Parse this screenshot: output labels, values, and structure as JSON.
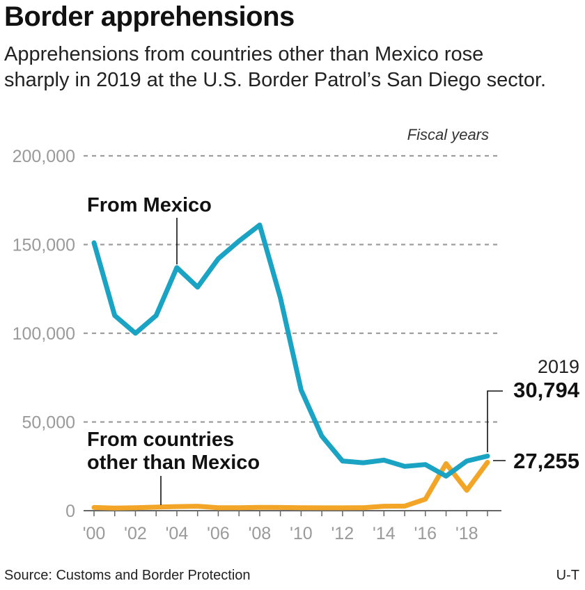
{
  "title": "Border apprehensions",
  "subtitle": "Apprehensions from countries other than Mexico rose sharply in 2019 at the U.S. Border Patrol’s San Diego sector.",
  "source": "Source: Customs and Border Protection",
  "credit": "U-T",
  "chart_data": {
    "type": "line",
    "note": "Fiscal years",
    "x": [
      2000,
      2001,
      2002,
      2003,
      2004,
      2005,
      2006,
      2007,
      2008,
      2009,
      2010,
      2011,
      2012,
      2013,
      2014,
      2015,
      2016,
      2017,
      2018,
      2019
    ],
    "x_tick_values": [
      2000,
      2002,
      2004,
      2006,
      2008,
      2010,
      2012,
      2014,
      2016,
      2018
    ],
    "x_tick_labels": [
      "'00",
      "'02",
      "'04",
      "'06",
      "'08",
      "'10",
      "'12",
      "'14",
      "'16",
      "'18"
    ],
    "y_tick_values": [
      0,
      50000,
      100000,
      150000,
      200000
    ],
    "y_tick_labels": [
      "0",
      "50,000",
      "100,000",
      "150,000",
      "200,000"
    ],
    "ylim": [
      0,
      200000
    ],
    "xlim": [
      2000,
      2019
    ],
    "grid": true,
    "series": [
      {
        "name": "From Mexico",
        "color": "#1aa3c2",
        "values": [
          151000,
          110000,
          100000,
          110000,
          137000,
          126000,
          142000,
          152000,
          161000,
          120000,
          68000,
          42000,
          28000,
          27000,
          28500,
          25000,
          26000,
          19500,
          28000,
          30794
        ]
      },
      {
        "name": "From countries other than Mexico",
        "color": "#f2a526",
        "values": [
          1800,
          1500,
          1700,
          2000,
          2300,
          2500,
          1700,
          1700,
          1900,
          1800,
          1700,
          1600,
          1600,
          1700,
          2500,
          2600,
          6500,
          26500,
          11500,
          27255
        ]
      }
    ],
    "labels": {
      "mexico": "From Mexico",
      "other_line1": "From countries",
      "other_line2": "other than Mexico",
      "end_year": "2019",
      "mexico_end_value": "30,794",
      "other_end_value": "27,255"
    }
  }
}
